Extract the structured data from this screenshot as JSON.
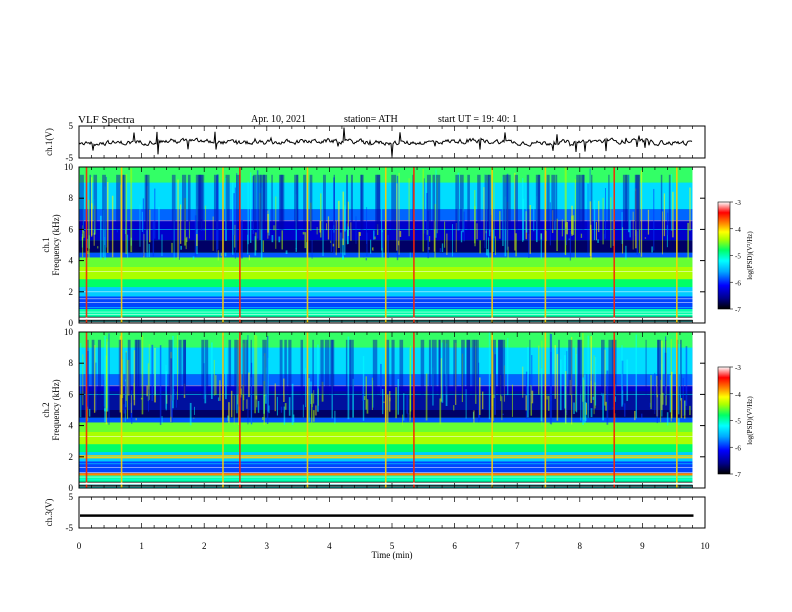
{
  "header": {
    "title": "VLF  Spectra",
    "date": "Apr. 10, 2021",
    "station": "station= ATH",
    "start": "start  UT  =    19: 40: 1"
  },
  "chart_data": {
    "type": "heatmap",
    "xlabel": "Time  (min)",
    "xlim": [
      0,
      10
    ],
    "xticks": [
      "0",
      "1",
      "2",
      "3",
      "4",
      "5",
      "6",
      "7",
      "8",
      "9",
      "10"
    ],
    "panels": [
      {
        "name": "ch1_waveform",
        "ylabel": "ch.1(V)",
        "ylim": [
          -5,
          5
        ],
        "yticks": [
          "5",
          "-5"
        ],
        "trace": "noisy waveform near 0 V"
      },
      {
        "name": "ch1_spectrogram",
        "ylabel": "ch.1\nFrequency  (kHz)",
        "ylim": [
          0,
          10
        ],
        "yticks": [
          "0",
          "2",
          "4",
          "6",
          "8",
          "10"
        ],
        "colorbar": {
          "label": "log(PSD)(V²/Hz)",
          "ticks": [
            "-3",
            "-4",
            "-5",
            "-6",
            "-7"
          ],
          "range": [
            -7,
            -3
          ]
        }
      },
      {
        "name": "ch2_spectrogram",
        "ylabel": "ch.2\nFrequency  (kHz)",
        "ylim": [
          0,
          10
        ],
        "yticks": [
          "0",
          "2",
          "4",
          "6",
          "8",
          "10"
        ],
        "colorbar": {
          "label": "log(PSD)(V²/Hz)",
          "ticks": [
            "-3",
            "-4",
            "-5",
            "-6",
            "-7"
          ],
          "range": [
            -7,
            -3
          ]
        }
      },
      {
        "name": "ch3_waveform",
        "ylabel": "ch.3(V)",
        "ylim": [
          -5,
          5
        ],
        "yticks": [
          "5",
          "-5"
        ],
        "trace": "flat line near -1 V"
      }
    ],
    "data_end_min": 9.8,
    "strong_impulses_min": [
      0.12,
      0.68,
      2.3,
      2.57,
      3.65,
      4.9,
      5.35,
      6.6,
      7.45,
      8.55,
      9.55
    ]
  },
  "colors": {
    "background": "#ffffff",
    "axis": "#000000",
    "colormap": [
      "#000000",
      "#00008b",
      "#0000ff",
      "#00aaff",
      "#00ffff",
      "#00ff66",
      "#aaff00",
      "#ffff00",
      "#ff8800",
      "#ff0000",
      "#ffffff"
    ]
  }
}
